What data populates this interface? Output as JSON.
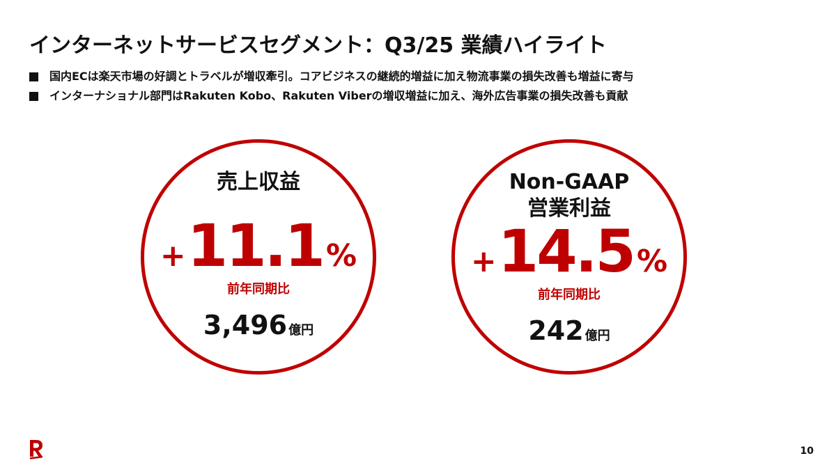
{
  "slide": {
    "title": "インターネットサービスセグメント：Q3/25 業績ハイライト",
    "bullets": [
      "国内ECは楽天市場の好調とトラベルが増収牽引。コアビジネスの継続的増益に加え物流事業の損失改善も増益に寄与",
      "インターナショナル部門はRakuten Kobo、Rakuten Viberの増収増益に加え、海外広告事業の損失改善も貢献"
    ],
    "page_number": "10"
  },
  "metrics": [
    {
      "title_lines": [
        "売上収益"
      ],
      "sign": "+",
      "value": "11.1",
      "unit": "%",
      "comparison": "前年同期比",
      "amount": "3,496",
      "amount_unit": "億円"
    },
    {
      "title_lines": [
        "Non-GAAP",
        "営業利益"
      ],
      "sign": "+",
      "value": "14.5",
      "unit": "%",
      "comparison": "前年同期比",
      "amount": "242",
      "amount_unit": "億円"
    }
  ],
  "colors": {
    "accent": "#bf0000",
    "text": "#111111",
    "background": "#ffffff"
  },
  "logo": {
    "icon": "rakuten-r-logo-icon"
  }
}
